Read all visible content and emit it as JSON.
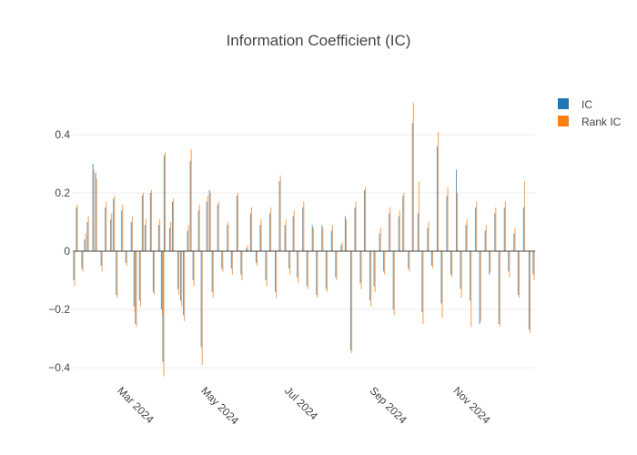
{
  "chart_data": {
    "type": "bar",
    "title": "Information Coefficient (IC)",
    "xlabel": "",
    "ylabel": "",
    "x_range": [
      "2024-01-29",
      "2024-12-31"
    ],
    "ylim": [
      -0.45,
      0.55
    ],
    "y_ticks": [
      -0.4,
      -0.2,
      0,
      0.2,
      0.4
    ],
    "y_tick_labels": [
      "−0.4",
      "−0.2",
      "0",
      "0.2",
      "0.4"
    ],
    "x_ticks": [
      "2024-03-01",
      "2024-05-01",
      "2024-07-01",
      "2024-09-01",
      "2024-11-01"
    ],
    "x_tick_labels": [
      "Mar 2024",
      "May 2024",
      "Jul 2024",
      "Sep 2024",
      "Nov 2024"
    ],
    "grid": true,
    "legend_position": "top-right",
    "colors": {
      "IC": "#1f77b4",
      "Rank IC": "#ff7f0e"
    },
    "opacity": 0.7,
    "series": [
      {
        "name": "IC",
        "points": [
          [
            "2024-01-30",
            -0.1
          ],
          [
            "2024-02-01",
            0.15
          ],
          [
            "2024-02-05",
            -0.06
          ],
          [
            "2024-02-07",
            0.04
          ],
          [
            "2024-02-09",
            0.1
          ],
          [
            "2024-02-13",
            0.3
          ],
          [
            "2024-02-15",
            0.27
          ],
          [
            "2024-02-19",
            -0.05
          ],
          [
            "2024-02-22",
            0.15
          ],
          [
            "2024-02-26",
            0.11
          ],
          [
            "2024-02-28",
            0.18
          ],
          [
            "2024-03-01",
            -0.15
          ],
          [
            "2024-03-05",
            0.14
          ],
          [
            "2024-03-08",
            -0.04
          ],
          [
            "2024-03-12",
            0.1
          ],
          [
            "2024-03-14",
            -0.19
          ],
          [
            "2024-03-15",
            -0.25
          ],
          [
            "2024-03-18",
            -0.17
          ],
          [
            "2024-03-20",
            0.19
          ],
          [
            "2024-03-22",
            0.09
          ],
          [
            "2024-03-26",
            0.2
          ],
          [
            "2024-03-28",
            -0.14
          ],
          [
            "2024-04-01",
            0.09
          ],
          [
            "2024-04-03",
            -0.2
          ],
          [
            "2024-04-04",
            -0.38
          ],
          [
            "2024-04-05",
            0.33
          ],
          [
            "2024-04-09",
            0.08
          ],
          [
            "2024-04-11",
            0.17
          ],
          [
            "2024-04-15",
            -0.13
          ],
          [
            "2024-04-17",
            -0.17
          ],
          [
            "2024-04-19",
            -0.22
          ],
          [
            "2024-04-22",
            0.07
          ],
          [
            "2024-04-24",
            0.31
          ],
          [
            "2024-04-26",
            -0.1
          ],
          [
            "2024-04-30",
            0.14
          ],
          [
            "2024-05-02",
            -0.33
          ],
          [
            "2024-05-06",
            0.17
          ],
          [
            "2024-05-08",
            0.21
          ],
          [
            "2024-05-10",
            -0.14
          ],
          [
            "2024-05-14",
            0.16
          ],
          [
            "2024-05-17",
            -0.06
          ],
          [
            "2024-05-21",
            0.09
          ],
          [
            "2024-05-24",
            -0.06
          ],
          [
            "2024-05-28",
            0.19
          ],
          [
            "2024-05-31",
            -0.08
          ],
          [
            "2024-06-04",
            0.01
          ],
          [
            "2024-06-07",
            0.13
          ],
          [
            "2024-06-11",
            -0.04
          ],
          [
            "2024-06-14",
            0.09
          ],
          [
            "2024-06-18",
            -0.1
          ],
          [
            "2024-06-21",
            0.13
          ],
          [
            "2024-06-25",
            -0.14
          ],
          [
            "2024-06-28",
            0.24
          ],
          [
            "2024-07-02",
            0.09
          ],
          [
            "2024-07-05",
            -0.06
          ],
          [
            "2024-07-08",
            0.12
          ],
          [
            "2024-07-11",
            -0.09
          ],
          [
            "2024-07-15",
            0.15
          ],
          [
            "2024-07-18",
            -0.12
          ],
          [
            "2024-07-22",
            0.09
          ],
          [
            "2024-07-25",
            -0.15
          ],
          [
            "2024-07-29",
            0.09
          ],
          [
            "2024-08-01",
            -0.13
          ],
          [
            "2024-08-05",
            0.07
          ],
          [
            "2024-08-08",
            -0.09
          ],
          [
            "2024-08-12",
            0.02
          ],
          [
            "2024-08-15",
            0.12
          ],
          [
            "2024-08-19",
            -0.34
          ],
          [
            "2024-08-22",
            0.15
          ],
          [
            "2024-08-26",
            -0.11
          ],
          [
            "2024-08-29",
            0.21
          ],
          [
            "2024-09-02",
            -0.17
          ],
          [
            "2024-09-05",
            -0.12
          ],
          [
            "2024-09-09",
            0.06
          ],
          [
            "2024-09-12",
            -0.07
          ],
          [
            "2024-09-16",
            0.13
          ],
          [
            "2024-09-19",
            -0.2
          ],
          [
            "2024-09-23",
            0.12
          ],
          [
            "2024-09-26",
            0.19
          ],
          [
            "2024-09-30",
            -0.06
          ],
          [
            "2024-10-03",
            0.44
          ],
          [
            "2024-10-07",
            0.13
          ],
          [
            "2024-10-10",
            -0.21
          ],
          [
            "2024-10-14",
            0.08
          ],
          [
            "2024-10-17",
            -0.05
          ],
          [
            "2024-10-21",
            0.36
          ],
          [
            "2024-10-24",
            -0.18
          ],
          [
            "2024-10-28",
            0.19
          ],
          [
            "2024-10-31",
            -0.08
          ],
          [
            "2024-11-04",
            0.28
          ],
          [
            "2024-11-07",
            -0.13
          ],
          [
            "2024-11-11",
            0.09
          ],
          [
            "2024-11-14",
            -0.17
          ],
          [
            "2024-11-18",
            0.15
          ],
          [
            "2024-11-21",
            -0.25
          ],
          [
            "2024-11-25",
            0.07
          ],
          [
            "2024-11-28",
            -0.08
          ],
          [
            "2024-12-02",
            0.13
          ],
          [
            "2024-12-05",
            -0.25
          ],
          [
            "2024-12-09",
            0.15
          ],
          [
            "2024-12-12",
            -0.07
          ],
          [
            "2024-12-16",
            0.06
          ],
          [
            "2024-12-19",
            -0.15
          ],
          [
            "2024-12-23",
            0.15
          ],
          [
            "2024-12-27",
            -0.27
          ],
          [
            "2024-12-30",
            -0.08
          ]
        ]
      },
      {
        "name": "Rank IC",
        "points": [
          [
            "2024-01-30",
            -0.12
          ],
          [
            "2024-02-01",
            0.16
          ],
          [
            "2024-02-05",
            -0.07
          ],
          [
            "2024-02-07",
            0.06
          ],
          [
            "2024-02-09",
            0.12
          ],
          [
            "2024-02-13",
            0.28
          ],
          [
            "2024-02-15",
            0.25
          ],
          [
            "2024-02-19",
            -0.07
          ],
          [
            "2024-02-22",
            0.17
          ],
          [
            "2024-02-26",
            0.13
          ],
          [
            "2024-02-28",
            0.19
          ],
          [
            "2024-03-01",
            -0.16
          ],
          [
            "2024-03-05",
            0.16
          ],
          [
            "2024-03-08",
            -0.05
          ],
          [
            "2024-03-12",
            0.12
          ],
          [
            "2024-03-14",
            -0.21
          ],
          [
            "2024-03-15",
            -0.26
          ],
          [
            "2024-03-18",
            -0.19
          ],
          [
            "2024-03-20",
            0.2
          ],
          [
            "2024-03-22",
            0.11
          ],
          [
            "2024-03-26",
            0.21
          ],
          [
            "2024-03-28",
            -0.15
          ],
          [
            "2024-04-01",
            0.11
          ],
          [
            "2024-04-03",
            -0.22
          ],
          [
            "2024-04-04",
            -0.43
          ],
          [
            "2024-04-05",
            0.34
          ],
          [
            "2024-04-09",
            0.1
          ],
          [
            "2024-04-11",
            0.18
          ],
          [
            "2024-04-15",
            -0.15
          ],
          [
            "2024-04-17",
            -0.19
          ],
          [
            "2024-04-19",
            -0.24
          ],
          [
            "2024-04-22",
            0.09
          ],
          [
            "2024-04-24",
            0.35
          ],
          [
            "2024-04-26",
            -0.12
          ],
          [
            "2024-04-30",
            0.16
          ],
          [
            "2024-05-02",
            -0.39
          ],
          [
            "2024-05-06",
            0.19
          ],
          [
            "2024-05-08",
            0.2
          ],
          [
            "2024-05-10",
            -0.16
          ],
          [
            "2024-05-14",
            0.17
          ],
          [
            "2024-05-17",
            -0.07
          ],
          [
            "2024-05-21",
            0.1
          ],
          [
            "2024-05-24",
            -0.08
          ],
          [
            "2024-05-28",
            0.2
          ],
          [
            "2024-05-31",
            -0.1
          ],
          [
            "2024-06-04",
            0.02
          ],
          [
            "2024-06-07",
            0.15
          ],
          [
            "2024-06-11",
            -0.05
          ],
          [
            "2024-06-14",
            0.11
          ],
          [
            "2024-06-18",
            -0.12
          ],
          [
            "2024-06-21",
            0.15
          ],
          [
            "2024-06-25",
            -0.16
          ],
          [
            "2024-06-28",
            0.26
          ],
          [
            "2024-07-02",
            0.11
          ],
          [
            "2024-07-05",
            -0.08
          ],
          [
            "2024-07-08",
            0.14
          ],
          [
            "2024-07-11",
            -0.11
          ],
          [
            "2024-07-15",
            0.17
          ],
          [
            "2024-07-18",
            -0.13
          ],
          [
            "2024-07-22",
            0.08
          ],
          [
            "2024-07-25",
            -0.16
          ],
          [
            "2024-07-29",
            0.08
          ],
          [
            "2024-08-01",
            -0.14
          ],
          [
            "2024-08-05",
            0.09
          ],
          [
            "2024-08-08",
            -0.1
          ],
          [
            "2024-08-12",
            0.03
          ],
          [
            "2024-08-15",
            0.11
          ],
          [
            "2024-08-19",
            -0.35
          ],
          [
            "2024-08-22",
            0.17
          ],
          [
            "2024-08-26",
            -0.13
          ],
          [
            "2024-08-29",
            0.22
          ],
          [
            "2024-09-02",
            -0.19
          ],
          [
            "2024-09-05",
            -0.14
          ],
          [
            "2024-09-09",
            0.08
          ],
          [
            "2024-09-12",
            -0.08
          ],
          [
            "2024-09-16",
            0.15
          ],
          [
            "2024-09-19",
            -0.22
          ],
          [
            "2024-09-23",
            0.14
          ],
          [
            "2024-09-26",
            0.2
          ],
          [
            "2024-09-30",
            -0.07
          ],
          [
            "2024-10-03",
            0.51
          ],
          [
            "2024-10-07",
            0.24
          ],
          [
            "2024-10-10",
            -0.25
          ],
          [
            "2024-10-14",
            0.1
          ],
          [
            "2024-10-17",
            -0.06
          ],
          [
            "2024-10-21",
            0.41
          ],
          [
            "2024-10-24",
            -0.23
          ],
          [
            "2024-10-28",
            0.22
          ],
          [
            "2024-10-31",
            -0.09
          ],
          [
            "2024-11-04",
            0.2
          ],
          [
            "2024-11-07",
            -0.16
          ],
          [
            "2024-11-11",
            0.11
          ],
          [
            "2024-11-14",
            -0.26
          ],
          [
            "2024-11-18",
            0.17
          ],
          [
            "2024-11-21",
            -0.24
          ],
          [
            "2024-11-25",
            0.09
          ],
          [
            "2024-11-28",
            -0.07
          ],
          [
            "2024-12-02",
            0.15
          ],
          [
            "2024-12-05",
            -0.26
          ],
          [
            "2024-12-09",
            0.17
          ],
          [
            "2024-12-12",
            -0.09
          ],
          [
            "2024-12-16",
            0.08
          ],
          [
            "2024-12-19",
            -0.16
          ],
          [
            "2024-12-23",
            0.24
          ],
          [
            "2024-12-27",
            -0.28
          ],
          [
            "2024-12-30",
            -0.1
          ]
        ]
      }
    ]
  }
}
